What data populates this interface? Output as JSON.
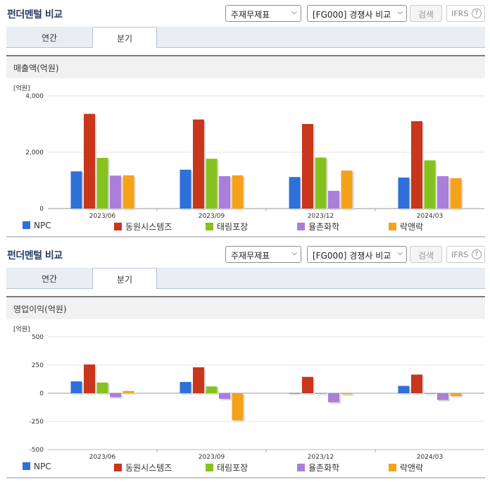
{
  "panels": [
    {
      "title": "펀더멘털 비교",
      "select_statement": "주재무제표",
      "select_compare": "[FG000] 경쟁사 비교",
      "search_label": "검색",
      "ifrs_label": "IFRS",
      "ifrs_help": "?",
      "tabs": [
        {
          "label": "연간",
          "active": false
        },
        {
          "label": "분기",
          "active": true
        }
      ],
      "section_label": "매출액(억원)",
      "unit_label": "[억원]"
    },
    {
      "title": "펀더멘털 비교",
      "select_statement": "주재무제표",
      "select_compare": "[FG000] 경쟁사 비교",
      "search_label": "검색",
      "ifrs_label": "IFRS",
      "ifrs_help": "?",
      "tabs": [
        {
          "label": "연간",
          "active": false
        },
        {
          "label": "분기",
          "active": true
        }
      ],
      "section_label": "영업이익(억원)",
      "unit_label": "[억원]"
    }
  ],
  "colors": {
    "NPC": "#2f6fd8",
    "동원시스템즈": "#c8361b",
    "태림포장": "#86c21f",
    "율촌화학": "#a97fd9",
    "락앤락": "#f6a11a"
  },
  "chart_data": [
    {
      "type": "bar",
      "title": "매출액(억원)",
      "ylabel": "[억원]",
      "categories": [
        "2023/06",
        "2023/09",
        "2023/12",
        "2024/03"
      ],
      "ylim": [
        0,
        4000
      ],
      "yticks": [
        "0",
        "2,000",
        "4,000"
      ],
      "ytick_values": [
        0,
        2000,
        4000
      ],
      "grid": true,
      "legend_position": "bottom",
      "series": [
        {
          "name": "NPC",
          "values": [
            1320,
            1380,
            1120,
            1100
          ]
        },
        {
          "name": "동원시스템즈",
          "values": [
            3360,
            3160,
            3000,
            3100
          ]
        },
        {
          "name": "태림포장",
          "values": [
            1800,
            1770,
            1810,
            1710
          ]
        },
        {
          "name": "율촌화학",
          "values": [
            1170,
            1150,
            630,
            1150
          ]
        },
        {
          "name": "락앤락",
          "values": [
            1180,
            1180,
            1350,
            1080
          ]
        }
      ]
    },
    {
      "type": "bar",
      "title": "영업이익(억원)",
      "ylabel": "[억원]",
      "categories": [
        "2023/06",
        "2023/09",
        "2023/12",
        "2024/03"
      ],
      "ylim": [
        -500,
        500
      ],
      "yticks": [
        "-500",
        "-250",
        "0",
        "250",
        "500"
      ],
      "ytick_values": [
        -500,
        -250,
        0,
        250,
        500
      ],
      "grid": true,
      "legend_position": "bottom",
      "series": [
        {
          "name": "NPC",
          "values": [
            105,
            100,
            2,
            65
          ]
        },
        {
          "name": "동원시스템즈",
          "values": [
            255,
            230,
            145,
            165
          ]
        },
        {
          "name": "태림포장",
          "values": [
            95,
            60,
            -5,
            -5
          ]
        },
        {
          "name": "율촌화학",
          "values": [
            -35,
            -50,
            -80,
            -60
          ]
        },
        {
          "name": "락앤락",
          "values": [
            20,
            -240,
            -10,
            -25
          ]
        }
      ]
    }
  ]
}
